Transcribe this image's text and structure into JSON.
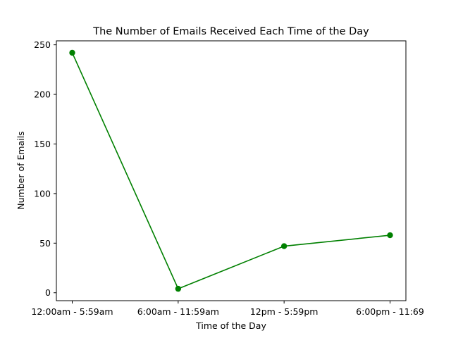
{
  "chart_data": {
    "type": "line",
    "title": "The Number of Emails Received Each Time of the Day",
    "xlabel": "Time of the Day",
    "ylabel": "Number of Emails",
    "categories": [
      "12:00am - 5:59am",
      "6:00am - 11:59am",
      "12pm - 5:59pm",
      "6:00pm - 11:69"
    ],
    "series": [
      {
        "values": [
          242,
          4,
          47,
          58
        ],
        "color": "#008000",
        "marker": "circle"
      }
    ],
    "ylim": [
      -8,
      254
    ],
    "yticks": [
      0,
      50,
      100,
      150,
      200,
      250
    ],
    "grid": false
  }
}
